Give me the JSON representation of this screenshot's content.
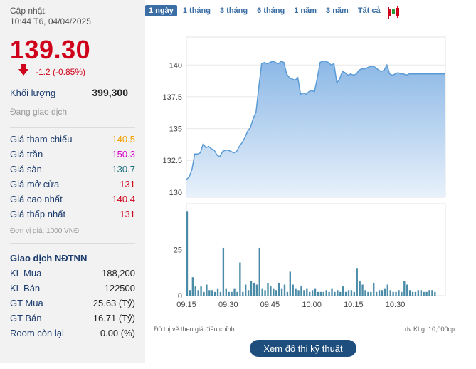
{
  "quote": {
    "updated_label": "Cập nhật:",
    "updated_time": "10:44 T6, 04/04/2025",
    "price": "139.30",
    "change": "-1.2 (-0.85%)",
    "volume_label": "Khối lượng",
    "volume_value": "399,300",
    "status": "Đang giao dịch",
    "colors": {
      "down": "#d0021b",
      "ref": "#f5a100",
      "ceiling": "#d500c8",
      "floor": "#1a6e7c"
    }
  },
  "prices": [
    {
      "label": "Giá tham chiếu",
      "value": "140.5",
      "color": "ref"
    },
    {
      "label": "Giá trần",
      "value": "150.3",
      "color": "ceiling"
    },
    {
      "label": "Giá sàn",
      "value": "130.7",
      "color": "floor"
    },
    {
      "label": "Giá mở cửa",
      "value": "131",
      "color": "down"
    },
    {
      "label": "Giá cao nhất",
      "value": "140.4",
      "color": "down"
    },
    {
      "label": "Giá thấp nhất",
      "value": "131",
      "color": "down"
    }
  ],
  "unit_note": "Đơn vị giá: 1000 VNĐ",
  "foreign": {
    "title": "Giao dịch NĐTNN",
    "rows": [
      {
        "label": "KL Mua",
        "value": "188,200"
      },
      {
        "label": "KL Bán",
        "value": "122500"
      },
      {
        "label": "GT Mua",
        "value": "25.63 (Tỷ)"
      },
      {
        "label": "GT Bán",
        "value": "16.71 (Tỷ)"
      },
      {
        "label": "Room còn lại",
        "value": "0.00 (%)"
      }
    ]
  },
  "tabs": [
    {
      "label": "1 ngày",
      "active": true
    },
    {
      "label": "1 tháng",
      "active": false
    },
    {
      "label": "3 tháng",
      "active": false
    },
    {
      "label": "6 tháng",
      "active": false
    },
    {
      "label": "1 năm",
      "active": false
    },
    {
      "label": "3 năm",
      "active": false
    },
    {
      "label": "Tất cả",
      "active": false
    }
  ],
  "candle_icon": "candlestick-icon",
  "footer": {
    "left": "Đồ thị vẽ theo giá điều chỉnh",
    "right": "dv KLg: 10,000cp",
    "button": "Xem đồ thị kỹ thuật"
  },
  "chart_data": [
    {
      "type": "area",
      "y_ticks": [
        130,
        132.5,
        135,
        137.5,
        140
      ],
      "y_tick_labels": [
        "130",
        "132.5",
        "135",
        "137.5",
        "140"
      ],
      "ylim": [
        129.6,
        142.2
      ],
      "x_ticks": [
        "09:15",
        "09:30",
        "09:45",
        "10:00",
        "10:15",
        "10:30"
      ],
      "x_tick_minutes": [
        0,
        15,
        30,
        45,
        60,
        75
      ],
      "xlim": [
        0,
        93
      ],
      "color": "#5b9bd5",
      "x": [
        0,
        1,
        2,
        3,
        4,
        5,
        6,
        7,
        8,
        9,
        10,
        11,
        12,
        13,
        14,
        15,
        16,
        17,
        18,
        19,
        20,
        21,
        22,
        23,
        24,
        25,
        26,
        27,
        28,
        29,
        30,
        31,
        32,
        33,
        34,
        35,
        36,
        37,
        38,
        39,
        40,
        41,
        42,
        43,
        44,
        45,
        46,
        47,
        48,
        49,
        50,
        51,
        52,
        53,
        54,
        55,
        56,
        57,
        58,
        59,
        60,
        61,
        62,
        63,
        64,
        65,
        66,
        67,
        68,
        69,
        70,
        71,
        72,
        73,
        74,
        75,
        76,
        77,
        78,
        79,
        80,
        81,
        82,
        83,
        84,
        85,
        86,
        87,
        88,
        89,
        90,
        91,
        92,
        93
      ],
      "y": [
        131.0,
        131.2,
        131.8,
        133.0,
        133.0,
        133.1,
        133.8,
        133.5,
        133.6,
        133.4,
        133.3,
        132.9,
        132.8,
        133.2,
        133.3,
        133.3,
        133.2,
        133.1,
        133.2,
        133.6,
        133.9,
        134.3,
        134.8,
        135.1,
        135.8,
        136.3,
        138.3,
        140.1,
        140.2,
        140.1,
        140.2,
        140.3,
        140.2,
        140.1,
        140.3,
        140.2,
        139.3,
        139.0,
        138.9,
        138.8,
        139.0,
        137.7,
        137.8,
        137.7,
        137.9,
        138.0,
        137.9,
        139.0,
        140.2,
        140.3,
        140.3,
        140.2,
        140.0,
        140.1,
        138.6,
        138.9,
        139.5,
        139.4,
        139.2,
        139.3,
        139.2,
        139.3,
        139.6,
        139.7,
        139.7,
        139.8,
        139.9,
        139.9,
        139.8,
        139.6,
        139.5,
        139.6,
        140.0,
        139.3,
        139.2,
        139.3,
        139.4,
        139.3,
        139.3,
        139.2,
        139.3,
        139.3,
        139.3,
        139.3,
        139.3,
        139.3,
        139.3,
        139.3,
        139.3,
        139.3,
        139.3,
        139.3,
        139.3,
        139.3
      ]
    },
    {
      "type": "bar",
      "y_ticks": [
        0,
        25
      ],
      "y_tick_labels": [
        "0",
        "25"
      ],
      "ylim": [
        0,
        50
      ],
      "xlim": [
        0,
        93
      ],
      "color": "#4a8ba8",
      "x": [
        0,
        1,
        2,
        3,
        4,
        5,
        6,
        7,
        8,
        9,
        10,
        11,
        12,
        13,
        14,
        15,
        16,
        17,
        18,
        19,
        20,
        21,
        22,
        23,
        24,
        25,
        26,
        27,
        28,
        29,
        30,
        31,
        32,
        33,
        34,
        35,
        36,
        37,
        38,
        39,
        40,
        41,
        42,
        43,
        44,
        45,
        46,
        47,
        48,
        49,
        50,
        51,
        52,
        53,
        54,
        55,
        56,
        57,
        58,
        59,
        60,
        61,
        62,
        63,
        64,
        65,
        66,
        67,
        68,
        69,
        70,
        71,
        72,
        73,
        74,
        75,
        76,
        77,
        78,
        79,
        80,
        81,
        82,
        83,
        84,
        85,
        86,
        87,
        88,
        89
      ],
      "values": [
        46,
        3,
        10,
        5,
        3,
        5,
        2,
        6,
        3,
        3,
        2,
        4,
        2,
        26,
        4,
        2,
        2,
        4,
        2,
        18,
        2,
        6,
        3,
        8,
        7,
        6,
        26,
        4,
        3,
        7,
        5,
        4,
        3,
        7,
        4,
        6,
        2,
        13,
        6,
        4,
        3,
        5,
        3,
        4,
        2,
        3,
        4,
        2,
        2,
        2,
        3,
        2,
        4,
        2,
        3,
        2,
        5,
        2,
        3,
        3,
        2,
        15,
        8,
        6,
        3,
        2,
        2,
        7,
        2,
        3,
        3,
        4,
        6,
        3,
        2,
        2,
        3,
        2,
        8,
        6,
        3,
        2,
        2,
        3,
        3,
        2,
        2,
        3,
        3,
        2
      ]
    }
  ]
}
